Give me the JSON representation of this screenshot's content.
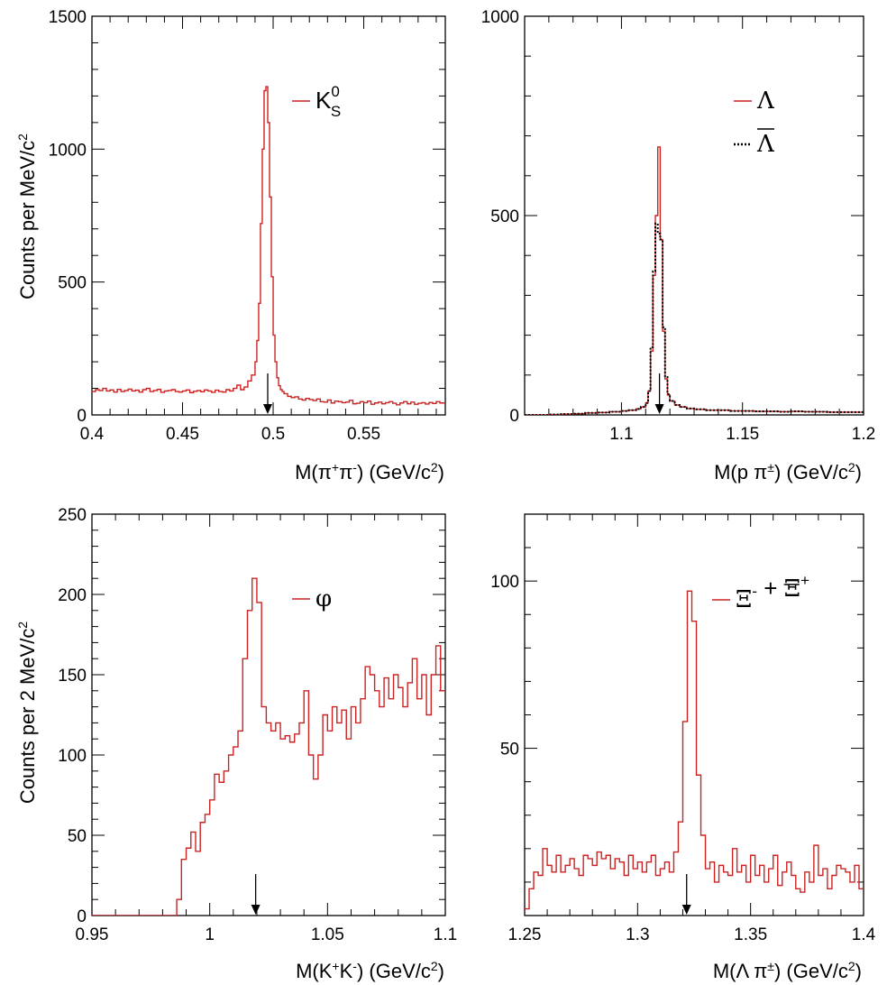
{
  "chart_data": [
    {
      "type": "line",
      "xlabel": "M(π⁺π⁻) (GeV/c²)",
      "ylabel": "Counts per MeV/c²",
      "xlim": [
        0.4,
        0.595
      ],
      "ylim": [
        0,
        1500
      ],
      "x_ticks": [
        0.4,
        0.45,
        0.5,
        0.55
      ],
      "x_tick_labels": [
        "0.4",
        "0.45",
        "0.5",
        "0.55"
      ],
      "y_ticks": [
        0,
        500,
        1000,
        1500
      ],
      "y_tick_labels": [
        "0",
        "500",
        "1000",
        "1500"
      ],
      "arrow_x": 0.497,
      "series": [
        {
          "name": "K_S^0",
          "legend_main": "K",
          "legend_sup": "0",
          "legend_sub": "S",
          "style": "solid",
          "color": "#cc2222",
          "x": [
            0.4,
            0.402,
            0.404,
            0.406,
            0.408,
            0.41,
            0.412,
            0.414,
            0.416,
            0.418,
            0.42,
            0.422,
            0.424,
            0.426,
            0.428,
            0.43,
            0.432,
            0.434,
            0.436,
            0.438,
            0.44,
            0.442,
            0.444,
            0.446,
            0.448,
            0.45,
            0.452,
            0.454,
            0.456,
            0.458,
            0.46,
            0.462,
            0.464,
            0.466,
            0.468,
            0.47,
            0.472,
            0.474,
            0.476,
            0.478,
            0.48,
            0.482,
            0.484,
            0.486,
            0.488,
            0.49,
            0.491,
            0.492,
            0.493,
            0.494,
            0.495,
            0.496,
            0.497,
            0.498,
            0.499,
            0.5,
            0.501,
            0.502,
            0.503,
            0.504,
            0.505,
            0.506,
            0.508,
            0.51,
            0.512,
            0.514,
            0.516,
            0.518,
            0.52,
            0.522,
            0.524,
            0.526,
            0.528,
            0.53,
            0.532,
            0.534,
            0.536,
            0.538,
            0.54,
            0.542,
            0.544,
            0.546,
            0.548,
            0.55,
            0.552,
            0.554,
            0.556,
            0.558,
            0.56,
            0.562,
            0.564,
            0.566,
            0.568,
            0.57,
            0.572,
            0.574,
            0.576,
            0.578,
            0.58,
            0.582,
            0.584,
            0.586,
            0.588,
            0.59,
            0.592
          ],
          "values": [
            88,
            95,
            92,
            100,
            90,
            94,
            86,
            96,
            88,
            92,
            97,
            90,
            93,
            86,
            95,
            100,
            88,
            92,
            96,
            85,
            90,
            92,
            95,
            88,
            86,
            90,
            94,
            84,
            89,
            92,
            87,
            94,
            90,
            85,
            93,
            88,
            86,
            95,
            90,
            100,
            112,
            95,
            105,
            128,
            150,
            200,
            280,
            420,
            720,
            1000,
            1220,
            1235,
            1100,
            820,
            520,
            300,
            200,
            140,
            110,
            95,
            88,
            80,
            70,
            65,
            68,
            60,
            56,
            62,
            58,
            54,
            60,
            50,
            48,
            56,
            45,
            52,
            50,
            46,
            48,
            55,
            42,
            44,
            50,
            46,
            52,
            40,
            45,
            48,
            42,
            46,
            50,
            44,
            38,
            45,
            50,
            42,
            48,
            40,
            44,
            46,
            41,
            47,
            43,
            50,
            45
          ]
        }
      ]
    },
    {
      "type": "line",
      "xlabel": "M(p π±) (GeV/c²)",
      "ylabel": "",
      "xlim": [
        1.06,
        1.2
      ],
      "ylim": [
        0,
        1000
      ],
      "x_ticks": [
        1.1,
        1.15,
        1.2
      ],
      "x_tick_labels": [
        "1.1",
        "1.15",
        "1.2"
      ],
      "y_ticks": [
        0,
        500,
        1000
      ],
      "y_tick_labels": [
        "0",
        "500",
        "1000"
      ],
      "arrow_x": 1.1157,
      "series": [
        {
          "name": "Λ",
          "legend_main": "Λ",
          "style": "solid",
          "color": "#cc2222",
          "x": [
            1.06,
            1.065,
            1.07,
            1.075,
            1.08,
            1.085,
            1.09,
            1.095,
            1.1,
            1.103,
            1.106,
            1.108,
            1.11,
            1.111,
            1.112,
            1.113,
            1.114,
            1.115,
            1.116,
            1.117,
            1.118,
            1.119,
            1.12,
            1.122,
            1.124,
            1.127,
            1.13,
            1.135,
            1.14,
            1.145,
            1.15,
            1.155,
            1.16,
            1.165,
            1.17,
            1.175,
            1.18,
            1.185,
            1.19,
            1.195
          ],
          "values": [
            0,
            0,
            1,
            2,
            3,
            5,
            6,
            8,
            10,
            12,
            15,
            20,
            30,
            60,
            160,
            350,
            500,
            672,
            440,
            210,
            90,
            50,
            35,
            25,
            20,
            16,
            14,
            12,
            12,
            10,
            10,
            9,
            9,
            8,
            9,
            8,
            8,
            7,
            7,
            7
          ]
        },
        {
          "name": "Λ̄",
          "legend_main": "Λ",
          "legend_overline": true,
          "style": "dotted",
          "color": "#000000",
          "x": [
            1.06,
            1.065,
            1.07,
            1.075,
            1.08,
            1.085,
            1.09,
            1.095,
            1.1,
            1.103,
            1.106,
            1.108,
            1.11,
            1.111,
            1.112,
            1.113,
            1.114,
            1.115,
            1.116,
            1.117,
            1.118,
            1.119,
            1.12,
            1.122,
            1.124,
            1.127,
            1.13,
            1.135,
            1.14,
            1.145,
            1.15,
            1.155,
            1.16,
            1.165,
            1.17,
            1.175,
            1.18,
            1.185,
            1.19,
            1.195
          ],
          "values": [
            0,
            0,
            1,
            2,
            3,
            5,
            6,
            8,
            10,
            12,
            15,
            20,
            30,
            60,
            170,
            360,
            480,
            455,
            440,
            220,
            95,
            52,
            35,
            25,
            20,
            16,
            14,
            12,
            12,
            10,
            10,
            9,
            9,
            8,
            9,
            8,
            8,
            7,
            7,
            7
          ]
        }
      ]
    },
    {
      "type": "line",
      "xlabel": "M(K⁺K⁻) (GeV/c²)",
      "ylabel": "Counts per 2 MeV/c²",
      "xlim": [
        0.95,
        1.1
      ],
      "ylim": [
        0,
        250
      ],
      "x_ticks": [
        0.95,
        1.0,
        1.05,
        1.1
      ],
      "x_tick_labels": [
        "0.95",
        "1",
        "1.05",
        "1.1"
      ],
      "y_ticks": [
        0,
        50,
        100,
        150,
        200,
        250
      ],
      "y_tick_labels": [
        "0",
        "50",
        "100",
        "150",
        "200",
        "250"
      ],
      "arrow_x": 1.0195,
      "series": [
        {
          "name": "φ",
          "legend_main": "φ",
          "style": "solid",
          "color": "#cc2222",
          "x": [
            0.95,
            0.952,
            0.954,
            0.956,
            0.958,
            0.96,
            0.962,
            0.964,
            0.966,
            0.968,
            0.97,
            0.972,
            0.974,
            0.976,
            0.978,
            0.98,
            0.982,
            0.984,
            0.986,
            0.988,
            0.99,
            0.992,
            0.994,
            0.996,
            0.998,
            1.0,
            1.002,
            1.004,
            1.006,
            1.008,
            1.01,
            1.012,
            1.014,
            1.016,
            1.018,
            1.02,
            1.022,
            1.024,
            1.026,
            1.028,
            1.03,
            1.032,
            1.034,
            1.036,
            1.038,
            1.04,
            1.042,
            1.044,
            1.046,
            1.048,
            1.05,
            1.052,
            1.054,
            1.056,
            1.058,
            1.06,
            1.062,
            1.064,
            1.066,
            1.068,
            1.07,
            1.072,
            1.074,
            1.076,
            1.078,
            1.08,
            1.082,
            1.084,
            1.086,
            1.088,
            1.09,
            1.092,
            1.094,
            1.096,
            1.098
          ],
          "values": [
            0,
            0,
            0,
            0,
            0,
            0,
            0,
            0,
            0,
            0,
            0,
            0,
            0,
            0,
            0,
            0,
            0,
            0,
            10,
            35,
            42,
            52,
            40,
            58,
            63,
            72,
            88,
            83,
            90,
            100,
            105,
            115,
            160,
            190,
            210,
            195,
            130,
            120,
            115,
            120,
            110,
            112,
            108,
            113,
            120,
            140,
            100,
            85,
            100,
            125,
            115,
            130,
            120,
            128,
            110,
            130,
            120,
            135,
            155,
            150,
            140,
            130,
            148,
            135,
            150,
            142,
            130,
            145,
            160,
            135,
            150,
            125,
            150,
            168,
            140
          ]
        }
      ]
    },
    {
      "type": "line",
      "xlabel": "M(Λ π±) (GeV/c²)",
      "ylabel": "",
      "xlim": [
        1.25,
        1.4
      ],
      "ylim": [
        0,
        120
      ],
      "x_ticks": [
        1.25,
        1.3,
        1.35,
        1.4
      ],
      "x_tick_labels": [
        "1.25",
        "1.3",
        "1.35",
        "1.4"
      ],
      "y_ticks": [
        50,
        100
      ],
      "y_tick_labels": [
        "50",
        "100"
      ],
      "arrow_x": 1.3217,
      "series": [
        {
          "name": "Ξ⁻ + Ξ̄⁺",
          "legend_main": "Ξ",
          "legend_sup": "-",
          "legend_plus": "+",
          "legend_main2": "Ξ",
          "legend_overline2": true,
          "legend_sup2": "+",
          "style": "solid",
          "color": "#cc2222",
          "x": [
            1.25,
            1.252,
            1.254,
            1.256,
            1.258,
            1.26,
            1.262,
            1.264,
            1.266,
            1.268,
            1.27,
            1.272,
            1.274,
            1.276,
            1.278,
            1.28,
            1.282,
            1.284,
            1.286,
            1.288,
            1.29,
            1.292,
            1.294,
            1.296,
            1.298,
            1.3,
            1.302,
            1.304,
            1.306,
            1.308,
            1.31,
            1.312,
            1.314,
            1.316,
            1.318,
            1.32,
            1.322,
            1.324,
            1.326,
            1.328,
            1.33,
            1.332,
            1.334,
            1.336,
            1.338,
            1.34,
            1.342,
            1.344,
            1.346,
            1.348,
            1.35,
            1.352,
            1.354,
            1.356,
            1.358,
            1.36,
            1.362,
            1.364,
            1.366,
            1.368,
            1.37,
            1.372,
            1.374,
            1.376,
            1.378,
            1.38,
            1.382,
            1.384,
            1.386,
            1.388,
            1.39,
            1.392,
            1.394,
            1.396,
            1.398
          ],
          "values": [
            2,
            8,
            13,
            12,
            20,
            15,
            13,
            18,
            13,
            15,
            17,
            14,
            12,
            18,
            17,
            15,
            19,
            17,
            18,
            14,
            17,
            16,
            12,
            18,
            14,
            16,
            13,
            16,
            18,
            12,
            14,
            16,
            13,
            19,
            28,
            58,
            97,
            88,
            42,
            24,
            14,
            16,
            10,
            15,
            13,
            12,
            20,
            13,
            15,
            10,
            18,
            12,
            15,
            10,
            14,
            18,
            9,
            13,
            16,
            12,
            8,
            7,
            13,
            10,
            21,
            12,
            14,
            8,
            12,
            15,
            14,
            13,
            10,
            15,
            8
          ]
        }
      ]
    }
  ]
}
